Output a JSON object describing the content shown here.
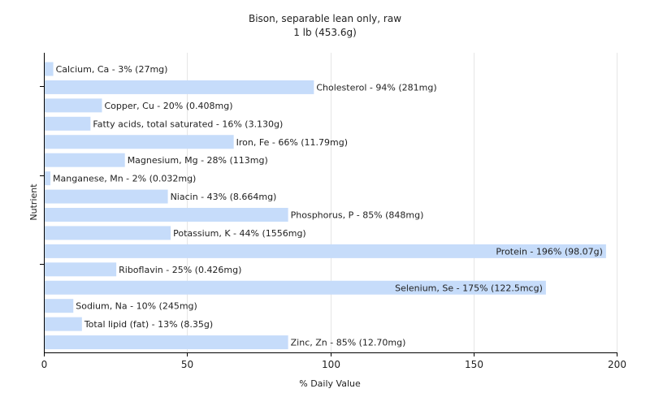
{
  "chart_data": {
    "type": "bar",
    "orientation": "horizontal",
    "title": "Bison, separable lean only, raw",
    "subtitle": "1 lb (453.6g)",
    "xlabel": "% Daily Value",
    "ylabel": "Nutrient",
    "xlim": [
      0,
      200
    ],
    "xticks": [
      0,
      50,
      100,
      150,
      200
    ],
    "grid": true,
    "bar_color": "#c6dcfa",
    "categories": [
      "Calcium, Ca",
      "Cholesterol",
      "Copper, Cu",
      "Fatty acids, total saturated",
      "Iron, Fe",
      "Magnesium, Mg",
      "Manganese, Mn",
      "Niacin",
      "Phosphorus, P",
      "Potassium, K",
      "Protein",
      "Riboflavin",
      "Selenium, Se",
      "Sodium, Na",
      "Total lipid (fat)",
      "Zinc, Zn"
    ],
    "values": [
      3,
      94,
      20,
      16,
      66,
      28,
      2,
      43,
      85,
      44,
      196,
      25,
      175,
      10,
      13,
      85
    ],
    "labels": [
      "Calcium, Ca - 3% (27mg)",
      "Cholesterol - 94% (281mg)",
      "Copper, Cu - 20% (0.408mg)",
      "Fatty acids, total saturated - 16% (3.130g)",
      "Iron, Fe - 66% (11.79mg)",
      "Magnesium, Mg - 28% (113mg)",
      "Manganese, Mn - 2% (0.032mg)",
      "Niacin - 43% (8.664mg)",
      "Phosphorus, P - 85% (848mg)",
      "Potassium, K - 44% (1556mg)",
      "Protein - 196% (98.07g)",
      "Riboflavin - 25% (0.426mg)",
      "Selenium, Se - 175% (122.5mcg)",
      "Sodium, Na - 10% (245mg)",
      "Total lipid (fat) - 13% (8.35g)",
      "Zinc, Zn - 85% (12.70mg)"
    ]
  }
}
